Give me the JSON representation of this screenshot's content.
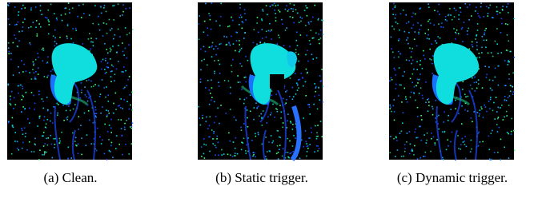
{
  "figure": {
    "subfigures": [
      {
        "caption": "(a) Clean."
      },
      {
        "caption": "(b) Static trigger."
      },
      {
        "caption": "(c) Dynamic trigger."
      }
    ]
  }
}
